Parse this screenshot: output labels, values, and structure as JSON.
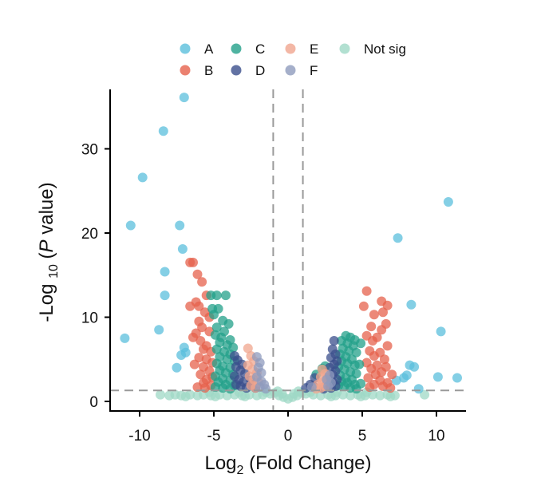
{
  "chart_data": {
    "type": "scatter",
    "title": "",
    "xlabel": {
      "main": "Log",
      "sub": "2",
      "rest": " (Fold Change)"
    },
    "ylabel": {
      "main": "-Log ",
      "sub": "10",
      "rest1": " (",
      "italic": "P",
      "rest2": " value)"
    },
    "xlim": [
      -12,
      12
    ],
    "ylim": [
      -1,
      37
    ],
    "xticks": [
      -10,
      -5,
      0,
      5,
      10
    ],
    "yticks": [
      0,
      10,
      20,
      30
    ],
    "thresholds": {
      "vertical": [
        -1,
        1
      ],
      "horizontal": 1.3
    },
    "grid": false,
    "legend_position": "top",
    "series": [
      {
        "name": "A",
        "color": "#5bbfdc",
        "points": [
          [
            -7,
            36.1
          ],
          [
            -8.4,
            32.1
          ],
          [
            -9.8,
            26.6
          ],
          [
            -10.6,
            20.9
          ],
          [
            -7.3,
            20.9
          ],
          [
            -7.1,
            18.1
          ],
          [
            -8.3,
            15.4
          ],
          [
            -8.3,
            12.6
          ],
          [
            -8.7,
            8.5
          ],
          [
            -11,
            7.5
          ],
          [
            -7,
            6.4
          ],
          [
            -7.2,
            5.5
          ],
          [
            -7.5,
            4
          ],
          [
            -6.9,
            5.8
          ],
          [
            10.8,
            23.7
          ],
          [
            7.4,
            19.4
          ],
          [
            8.3,
            11.5
          ],
          [
            10.3,
            8.3
          ],
          [
            8.2,
            4.3
          ],
          [
            8.5,
            4.1
          ],
          [
            8,
            3.1
          ],
          [
            7.8,
            2.8
          ],
          [
            10.1,
            2.9
          ],
          [
            11.4,
            2.8
          ],
          [
            8.8,
            1.5
          ],
          [
            7.3,
            2.5
          ]
        ]
      },
      {
        "name": "B",
        "color": "#e6624c",
        "points": [
          [
            -6.6,
            16.5
          ],
          [
            -6.4,
            16.5
          ],
          [
            -6.1,
            15.1
          ],
          [
            -5.8,
            14.2
          ],
          [
            -5.5,
            12.6
          ],
          [
            -6.2,
            11.8
          ],
          [
            -6.6,
            11.3
          ],
          [
            -6,
            11.3
          ],
          [
            -5.6,
            10.6
          ],
          [
            -5.3,
            10
          ],
          [
            -6,
            9.5
          ],
          [
            -5.8,
            8.8
          ],
          [
            -6.2,
            8.1
          ],
          [
            -5.3,
            8.3
          ],
          [
            -6.4,
            7.6
          ],
          [
            -5.9,
            7.2
          ],
          [
            -5.5,
            6.6
          ],
          [
            -5.7,
            6.2
          ],
          [
            -5.2,
            5.9
          ],
          [
            -6,
            5.2
          ],
          [
            -5.5,
            5
          ],
          [
            -5.1,
            4.6
          ],
          [
            -6.3,
            4.4
          ],
          [
            -5.7,
            4.1
          ],
          [
            -5.3,
            3.6
          ],
          [
            -5.9,
            3.2
          ],
          [
            -5.1,
            2.9
          ],
          [
            -5.5,
            2.6
          ],
          [
            -5.7,
            2.2
          ],
          [
            -5.2,
            1.9
          ],
          [
            -6.1,
            1.7
          ],
          [
            -5.6,
            1.6
          ],
          [
            5.3,
            13.1
          ],
          [
            6.3,
            11.9
          ],
          [
            6.7,
            11.4
          ],
          [
            5.1,
            11.3
          ],
          [
            5.8,
            10.3
          ],
          [
            6.4,
            10.6
          ],
          [
            6.6,
            9.2
          ],
          [
            5.6,
            8.9
          ],
          [
            6.3,
            8.5
          ],
          [
            5.3,
            7.8
          ],
          [
            6,
            7.6
          ],
          [
            5.7,
            7.2
          ],
          [
            6.7,
            6.6
          ],
          [
            5.5,
            6
          ],
          [
            6.2,
            5.8
          ],
          [
            5.8,
            5.4
          ],
          [
            6.5,
            5
          ],
          [
            5.3,
            4.6
          ],
          [
            6,
            4.3
          ],
          [
            6.6,
            4.1
          ],
          [
            5.6,
            3.9
          ],
          [
            6.3,
            3.5
          ],
          [
            5.9,
            3.2
          ],
          [
            7,
            3.2
          ],
          [
            5.4,
            2.8
          ],
          [
            6.2,
            2.5
          ],
          [
            6.7,
            2.2
          ],
          [
            5.8,
            2
          ],
          [
            6.4,
            1.8
          ],
          [
            5.5,
            1.7
          ],
          [
            6.9,
            1.6
          ]
        ]
      },
      {
        "name": "C",
        "color": "#23a08a",
        "points": [
          [
            -5.2,
            12.6
          ],
          [
            -4.8,
            12.6
          ],
          [
            -4.2,
            12.6
          ],
          [
            -5.1,
            11
          ],
          [
            -4.7,
            11
          ],
          [
            -5,
            10.3
          ],
          [
            -4.4,
            9.6
          ],
          [
            -4,
            9.2
          ],
          [
            -4.8,
            8.8
          ],
          [
            -4.3,
            8.3
          ],
          [
            -4.9,
            7.9
          ],
          [
            -4.5,
            7.6
          ],
          [
            -3.9,
            7.3
          ],
          [
            -4.6,
            7
          ],
          [
            -4.1,
            6.7
          ],
          [
            -3.7,
            6.4
          ],
          [
            -4.8,
            6.2
          ],
          [
            -4.3,
            5.9
          ],
          [
            -3.9,
            5.6
          ],
          [
            -4.6,
            5.3
          ],
          [
            -4.1,
            5
          ],
          [
            -3.6,
            4.8
          ],
          [
            -4.8,
            4.5
          ],
          [
            -4.4,
            4.2
          ],
          [
            -3.9,
            4
          ],
          [
            -4.6,
            3.7
          ],
          [
            -4.2,
            3.4
          ],
          [
            -3.7,
            3.2
          ],
          [
            -4.9,
            3
          ],
          [
            -4.4,
            2.7
          ],
          [
            -3.9,
            2.5
          ],
          [
            -4.7,
            2.3
          ],
          [
            -4.2,
            2
          ],
          [
            -3.6,
            1.9
          ],
          [
            -4.9,
            1.7
          ],
          [
            -4.4,
            1.6
          ],
          [
            -3.9,
            1.5
          ],
          [
            3.9,
            7.8
          ],
          [
            4.2,
            7.6
          ],
          [
            4.5,
            7.3
          ],
          [
            3.6,
            7.2
          ],
          [
            4,
            6.9
          ],
          [
            4.4,
            6.6
          ],
          [
            3.7,
            6.3
          ],
          [
            4.1,
            6
          ],
          [
            4.6,
            5.8
          ],
          [
            3.5,
            5.6
          ],
          [
            3.9,
            5.3
          ],
          [
            4.3,
            5
          ],
          [
            3.6,
            4.8
          ],
          [
            4,
            4.5
          ],
          [
            4.5,
            4.3
          ],
          [
            3.4,
            4.1
          ],
          [
            3.8,
            3.8
          ],
          [
            4.2,
            3.5
          ],
          [
            4.6,
            3.3
          ],
          [
            3.5,
            3.1
          ],
          [
            3.9,
            2.8
          ],
          [
            4.3,
            2.6
          ],
          [
            3.6,
            2.4
          ],
          [
            4,
            2.2
          ],
          [
            4.5,
            2
          ],
          [
            3.4,
            1.9
          ],
          [
            3.8,
            1.8
          ],
          [
            4.2,
            1.6
          ],
          [
            4.6,
            1.5
          ],
          [
            4.9,
            6.9
          ],
          [
            4.8,
            4.4
          ],
          [
            4.9,
            2.1
          ],
          [
            2.7,
            2.2
          ],
          [
            2.3,
            3.9
          ],
          [
            1.9,
            3.2
          ],
          [
            2.5,
            4.2
          ]
        ]
      },
      {
        "name": "D",
        "color": "#3b4f8c",
        "points": [
          [
            -3.6,
            5.4
          ],
          [
            -3.4,
            4.9
          ],
          [
            -3.1,
            4.4
          ],
          [
            -3.5,
            4.1
          ],
          [
            -3.2,
            3.7
          ],
          [
            -2.9,
            3.3
          ],
          [
            -3.6,
            3
          ],
          [
            -3.3,
            2.6
          ],
          [
            -3,
            2.3
          ],
          [
            -3.5,
            2
          ],
          [
            -3.2,
            1.8
          ],
          [
            -2.8,
            1.6
          ],
          [
            -2.5,
            2.5
          ],
          [
            -2.4,
            1.9
          ],
          [
            -2.2,
            1.6
          ],
          [
            3.1,
            7.2
          ],
          [
            3,
            6.2
          ],
          [
            3.2,
            5.6
          ],
          [
            2.9,
            5.2
          ],
          [
            3.3,
            4.8
          ],
          [
            3.1,
            4.4
          ],
          [
            2.8,
            4
          ],
          [
            3.2,
            3.6
          ],
          [
            3,
            3.2
          ],
          [
            2.7,
            2.9
          ],
          [
            3.3,
            2.6
          ],
          [
            3,
            2.3
          ],
          [
            2.6,
            2
          ],
          [
            3.2,
            1.8
          ],
          [
            2.9,
            1.6
          ],
          [
            2.4,
            1.5
          ],
          [
            1.8,
            2.8
          ],
          [
            1.5,
            2
          ],
          [
            1.2,
            1.6
          ],
          [
            1.7,
            1.8
          ]
        ]
      },
      {
        "name": "E",
        "color": "#f0a58e",
        "points": [
          [
            -2.7,
            6.3
          ],
          [
            -2.5,
            5.4
          ],
          [
            -2.3,
            4.8
          ],
          [
            -2.7,
            4.3
          ],
          [
            -2.4,
            3.8
          ],
          [
            -2.1,
            3.4
          ],
          [
            -2.6,
            3
          ],
          [
            -2.3,
            2.6
          ],
          [
            -2,
            2.3
          ],
          [
            -2.5,
            1.9
          ],
          [
            -2.2,
            1.6
          ],
          [
            2.3,
            3.8
          ],
          [
            2.5,
            3.3
          ],
          [
            2.2,
            2.9
          ],
          [
            2.6,
            2.6
          ],
          [
            2.3,
            2.3
          ],
          [
            2,
            2
          ],
          [
            2.5,
            1.8
          ],
          [
            2.2,
            1.6
          ],
          [
            1.9,
            1.5
          ]
        ]
      },
      {
        "name": "F",
        "color": "#8f9bbd",
        "points": [
          [
            -2.1,
            5.3
          ],
          [
            -1.9,
            4.6
          ],
          [
            -2,
            4
          ],
          [
            -1.8,
            3.4
          ],
          [
            -2.1,
            2.9
          ],
          [
            -1.8,
            2.4
          ],
          [
            -1.6,
            2
          ],
          [
            -1.9,
            1.7
          ],
          [
            -1.5,
            1.5
          ],
          [
            2.8,
            3.1
          ],
          [
            2.6,
            2.6
          ],
          [
            2.9,
            2.2
          ],
          [
            2.7,
            1.8
          ],
          [
            1.6,
            1.7
          ]
        ]
      },
      {
        "name": "Not sig",
        "color": "#9fd8c6",
        "points": [
          [
            -8.6,
            0.8
          ],
          [
            -8,
            0.7
          ],
          [
            -7.6,
            0.8
          ],
          [
            -7.2,
            0.7
          ],
          [
            -6.6,
            0.8
          ],
          [
            -6.1,
            0.7
          ],
          [
            -5.7,
            0.8
          ],
          [
            -5.2,
            0.7
          ],
          [
            -4.6,
            0.8
          ],
          [
            -4.1,
            0.7
          ],
          [
            -3.6,
            0.8
          ],
          [
            -3.1,
            0.7
          ],
          [
            -2.6,
            0.8
          ],
          [
            -2.1,
            0.7
          ],
          [
            -1.7,
            0.8
          ],
          [
            -1.2,
            0.9
          ],
          [
            -0.9,
            1
          ],
          [
            -0.6,
            0.7
          ],
          [
            -0.3,
            0.5
          ],
          [
            0,
            0.3
          ],
          [
            0.3,
            0.5
          ],
          [
            0.6,
            0.7
          ],
          [
            0.9,
            1
          ],
          [
            1.2,
            0.9
          ],
          [
            1.7,
            0.8
          ],
          [
            2.2,
            0.7
          ],
          [
            2.7,
            0.8
          ],
          [
            3.2,
            0.7
          ],
          [
            3.7,
            0.8
          ],
          [
            4.2,
            0.7
          ],
          [
            4.7,
            0.8
          ],
          [
            5.2,
            0.7
          ],
          [
            5.7,
            0.8
          ],
          [
            6.2,
            0.7
          ],
          [
            6.7,
            0.8
          ],
          [
            7.2,
            0.7
          ],
          [
            -0.7,
            1.2
          ],
          [
            0.7,
            1.2
          ],
          [
            -0.4,
            0.9
          ],
          [
            0.4,
            0.9
          ],
          [
            -1.5,
            1.1
          ],
          [
            1.5,
            1.1
          ],
          [
            -6.9,
            0.6
          ],
          [
            -4.9,
            0.6
          ],
          [
            -2.9,
            0.6
          ],
          [
            2.9,
            0.6
          ],
          [
            4.9,
            0.6
          ],
          [
            6.9,
            0.6
          ],
          [
            9.2,
            0.8
          ],
          [
            -5.3,
            1.1
          ],
          [
            5.3,
            1.1
          ],
          [
            -3.3,
            1.1
          ],
          [
            3.3,
            1.1
          ]
        ]
      }
    ]
  }
}
